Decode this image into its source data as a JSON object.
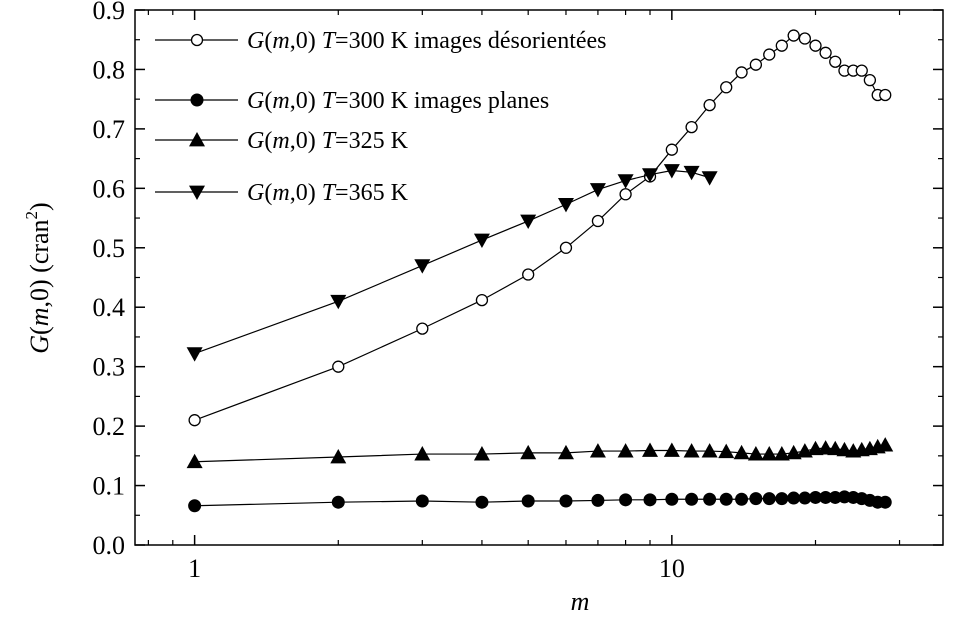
{
  "chart_data": {
    "type": "line",
    "x_scale": "log",
    "xlim": [
      0.75,
      37
    ],
    "ylim": [
      0.0,
      0.9
    ],
    "xlabel": "m",
    "ylabel": "G(m,0)  (cran²)",
    "x_ticks": [
      {
        "value": 1,
        "label": "1"
      },
      {
        "value": 10,
        "label": "10"
      }
    ],
    "y_ticks": [
      {
        "value": 0.0,
        "label": "0.0"
      },
      {
        "value": 0.1,
        "label": "0.1"
      },
      {
        "value": 0.2,
        "label": "0.2"
      },
      {
        "value": 0.3,
        "label": "0.3"
      },
      {
        "value": 0.4,
        "label": "0.4"
      },
      {
        "value": 0.5,
        "label": "0.5"
      },
      {
        "value": 0.6,
        "label": "0.6"
      },
      {
        "value": 0.7,
        "label": "0.7"
      },
      {
        "value": 0.8,
        "label": "0.8"
      },
      {
        "value": 0.9,
        "label": "0.9"
      }
    ],
    "grid": false,
    "legend_position": "top-left",
    "series": [
      {
        "name": "G(m,0) T=300 K images désorientées",
        "marker": "open-circle",
        "x": [
          1,
          2,
          3,
          4,
          5,
          6,
          7,
          8,
          9,
          10,
          11,
          12,
          13,
          14,
          15,
          16,
          17,
          18,
          19,
          20,
          21,
          22,
          23,
          24,
          25,
          26,
          27,
          28
        ],
        "y": [
          0.21,
          0.3,
          0.364,
          0.412,
          0.455,
          0.5,
          0.545,
          0.59,
          0.62,
          0.665,
          0.703,
          0.74,
          0.77,
          0.795,
          0.808,
          0.825,
          0.84,
          0.857,
          0.852,
          0.84,
          0.828,
          0.813,
          0.798,
          0.798,
          0.798,
          0.782,
          0.757,
          0.757
        ]
      },
      {
        "name": "G(m,0) T=300 K images planes",
        "marker": "filled-circle",
        "x": [
          1,
          2,
          3,
          4,
          5,
          6,
          7,
          8,
          9,
          10,
          11,
          12,
          13,
          14,
          15,
          16,
          17,
          18,
          19,
          20,
          21,
          22,
          23,
          24,
          25,
          26,
          27,
          28
        ],
        "y": [
          0.066,
          0.072,
          0.074,
          0.072,
          0.074,
          0.074,
          0.075,
          0.076,
          0.076,
          0.077,
          0.077,
          0.077,
          0.077,
          0.077,
          0.078,
          0.078,
          0.078,
          0.079,
          0.079,
          0.08,
          0.08,
          0.08,
          0.081,
          0.08,
          0.078,
          0.075,
          0.072,
          0.072
        ]
      },
      {
        "name": "G(m,0) T=325 K",
        "marker": "up-triangle",
        "x": [
          1,
          2,
          3,
          4,
          5,
          6,
          7,
          8,
          9,
          10,
          11,
          12,
          13,
          14,
          15,
          16,
          17,
          18,
          19,
          20,
          21,
          22,
          23,
          24,
          25,
          26,
          27,
          28
        ],
        "y": [
          0.14,
          0.148,
          0.153,
          0.153,
          0.155,
          0.155,
          0.158,
          0.158,
          0.159,
          0.159,
          0.158,
          0.158,
          0.157,
          0.155,
          0.153,
          0.153,
          0.153,
          0.155,
          0.158,
          0.162,
          0.163,
          0.162,
          0.16,
          0.158,
          0.16,
          0.162,
          0.165,
          0.168
        ]
      },
      {
        "name": "G(m,0) T=365 K",
        "marker": "down-triangle",
        "x": [
          1,
          2,
          3,
          4,
          5,
          6,
          7,
          8,
          9,
          10,
          11,
          12
        ],
        "y": [
          0.322,
          0.41,
          0.47,
          0.513,
          0.545,
          0.573,
          0.598,
          0.613,
          0.623,
          0.63,
          0.627,
          0.618
        ]
      }
    ]
  }
}
